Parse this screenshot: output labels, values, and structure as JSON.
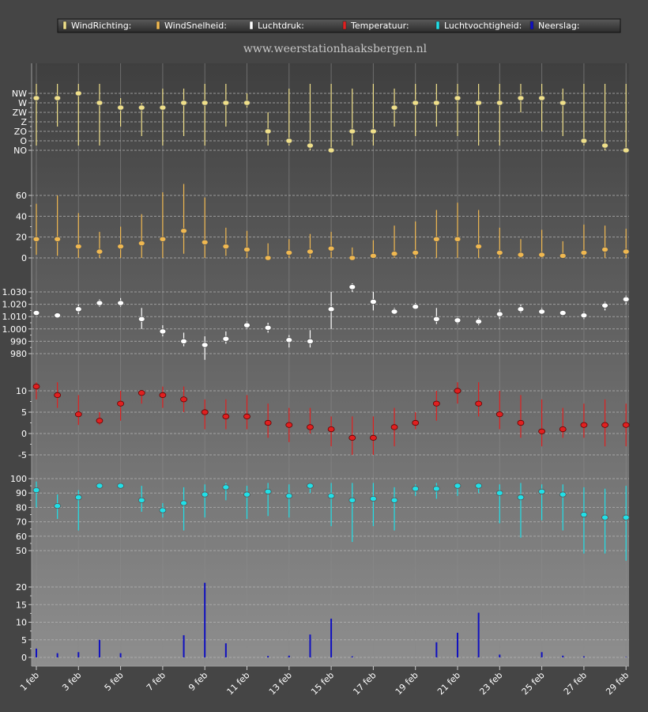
{
  "legend": {
    "items": [
      {
        "label": "WindRichting:",
        "color": "#f0e08a"
      },
      {
        "label": "WindSnelheid:",
        "color": "#f0b850"
      },
      {
        "label": "Luchtdruk:",
        "color": "#ffffff"
      },
      {
        "label": "Temperatuur:",
        "color": "#e02020"
      },
      {
        "label": "Luchtvochtigheid:",
        "color": "#20e0e8"
      },
      {
        "label": "Neerslag:",
        "color": "#1010c0"
      }
    ]
  },
  "watermark": "www.weerstationhaaksbergen.nl",
  "chart_data": {
    "type": "multi-panel",
    "x_tick_labels": [
      "1 feb",
      "3 feb",
      "5 feb",
      "7 feb",
      "9 feb",
      "11 feb",
      "13 feb",
      "15 feb",
      "17 feb",
      "19 feb",
      "21 feb",
      "23 feb",
      "25 feb",
      "27 feb",
      "29 feb"
    ],
    "days": [
      1,
      2,
      3,
      4,
      5,
      6,
      7,
      8,
      9,
      10,
      11,
      12,
      13,
      14,
      15,
      16,
      17,
      18,
      19,
      20,
      21,
      22,
      23,
      24,
      25,
      26,
      27,
      28,
      29
    ],
    "panels": [
      {
        "name": "WindRichting",
        "type": "range-dot",
        "color": "#f0e08a",
        "categories": [
          "NO",
          "O",
          "ZO",
          "Z",
          "ZW",
          "W",
          "NW"
        ],
        "yticks": [
          "NW",
          "W",
          "ZW",
          "Z",
          "ZO",
          "O",
          "NO"
        ],
        "mean": [
          5.5,
          5.5,
          6,
          5,
          4.5,
          4.5,
          4.5,
          5,
          5,
          5,
          5,
          2,
          1,
          0.5,
          0,
          2,
          2,
          4.5,
          5,
          5,
          5.5,
          5,
          5,
          5.5,
          5.5,
          5,
          1,
          0.5,
          0
        ],
        "low": [
          0.5,
          2.5,
          0.5,
          0.5,
          2.5,
          1.5,
          0.5,
          1.5,
          0.5,
          2.5,
          4.5,
          0.5,
          0.5,
          0,
          0,
          0.5,
          0.5,
          2.5,
          1.5,
          2.5,
          1.5,
          0.5,
          0.5,
          4,
          2,
          1.5,
          0.5,
          0,
          0
        ],
        "high": [
          7,
          7,
          7,
          7,
          5.5,
          5,
          6.5,
          6.5,
          7,
          7,
          6,
          4,
          6.5,
          7,
          7,
          6.5,
          7,
          6.5,
          7,
          7,
          7,
          7,
          7,
          7,
          7,
          6.5,
          7,
          7,
          7
        ]
      },
      {
        "name": "WindSnelheid",
        "type": "range-dot",
        "color": "#f0b850",
        "yticks": [
          0,
          20,
          40,
          60
        ],
        "mean": [
          18,
          18,
          11,
          6,
          11,
          14,
          18,
          26,
          15,
          11,
          8,
          0,
          5,
          6,
          9,
          0,
          2,
          4,
          5,
          18,
          18,
          11,
          5,
          3,
          3,
          2,
          5,
          8,
          6
        ],
        "low": [
          3,
          2,
          0,
          0,
          0,
          0,
          0,
          4,
          0,
          2,
          0,
          0,
          0,
          0,
          0,
          0,
          0,
          0,
          0,
          0,
          0,
          0,
          0,
          0,
          0,
          0,
          0,
          0,
          0
        ],
        "high": [
          52,
          60,
          43,
          25,
          30,
          42,
          63,
          71,
          58,
          29,
          26,
          14,
          18,
          23,
          25,
          10,
          17,
          31,
          35,
          46,
          53,
          46,
          29,
          18,
          27,
          16,
          32,
          31,
          28
        ]
      },
      {
        "name": "Luchtdruk",
        "type": "range-dot",
        "color": "#ffffff",
        "yticks": [
          "980",
          "990",
          "1.000",
          "1.010",
          "1.020",
          "1.030"
        ],
        "yvalues": [
          980,
          990,
          1000,
          1010,
          1020,
          1030
        ],
        "mean": [
          1013,
          1011,
          1016,
          1021,
          1021,
          1008,
          998,
          990,
          987,
          992,
          1003,
          1001,
          991,
          990,
          1016,
          1034,
          1022,
          1014,
          1018,
          1008,
          1007,
          1006,
          1012,
          1016,
          1014,
          1013,
          1011,
          1019,
          1024
        ],
        "low": [
          1011,
          1010,
          1012,
          1018,
          1018,
          1000,
          994,
          986,
          975,
          988,
          1000,
          997,
          985,
          985,
          1000,
          1030,
          1015,
          1012,
          1016,
          1004,
          1004,
          1003,
          1008,
          1013,
          1012,
          1011,
          1008,
          1015,
          1020
        ],
        "high": [
          1015,
          1013,
          1020,
          1024,
          1025,
          1017,
          1003,
          997,
          994,
          998,
          1006,
          1005,
          995,
          999,
          1030,
          1037,
          1030,
          1017,
          1021,
          1017,
          1010,
          1009,
          1016,
          1020,
          1017,
          1015,
          1014,
          1022,
          1027
        ]
      },
      {
        "name": "Temperatuur",
        "type": "range-dot",
        "color": "#e02020",
        "yticks": [
          "-5",
          "0",
          "5",
          "10"
        ],
        "yvalues": [
          -5,
          0,
          5,
          10
        ],
        "mean": [
          11,
          9,
          4.5,
          3,
          7,
          9.5,
          9,
          8,
          5,
          4,
          4,
          2.5,
          2,
          1.5,
          1,
          -1,
          -1,
          1.5,
          2.5,
          7,
          10,
          7,
          4.5,
          2.5,
          0.5,
          1,
          2,
          2,
          2
        ],
        "low": [
          8,
          6,
          2,
          2,
          3,
          7,
          6,
          5,
          1,
          1,
          1,
          -1,
          -2,
          0,
          -3,
          -5,
          -5,
          -3,
          1,
          3,
          7,
          4,
          1,
          -1,
          -3,
          -1,
          -1,
          -3,
          -3
        ],
        "high": [
          12,
          12,
          9,
          5,
          10,
          10,
          11,
          11,
          8,
          8,
          9,
          7,
          6,
          6,
          4,
          4,
          4,
          6,
          5,
          10,
          12,
          12,
          10,
          9,
          8,
          6,
          7,
          8,
          7
        ]
      },
      {
        "name": "Luchtvochtigheid",
        "type": "range-dot",
        "color": "#20e0e8",
        "yticks": [
          50,
          60,
          70,
          80,
          90,
          100
        ],
        "mean": [
          92,
          81,
          87,
          95,
          95,
          85,
          78,
          83,
          89,
          94,
          89,
          91,
          88,
          95,
          88,
          85,
          86,
          85,
          93,
          93,
          95,
          95,
          90,
          87,
          91,
          89,
          75,
          73,
          73
        ],
        "low": [
          80,
          72,
          64,
          93,
          94,
          77,
          73,
          64,
          73,
          85,
          72,
          74,
          73,
          90,
          67,
          56,
          67,
          64,
          88,
          86,
          88,
          90,
          69,
          59,
          71,
          64,
          48,
          48,
          43
        ],
        "high": [
          98,
          89,
          92,
          97,
          97,
          95,
          83,
          94,
          96,
          97,
          95,
          97,
          96,
          97,
          97,
          97,
          97,
          94,
          96,
          97,
          97,
          97,
          96,
          97,
          96,
          96,
          94,
          93,
          95
        ]
      },
      {
        "name": "Neerslag",
        "type": "bar",
        "color": "#1010c0",
        "yticks": [
          0,
          5,
          10,
          15,
          20
        ],
        "values": [
          2.5,
          1.2,
          1.5,
          5,
          1.2,
          0,
          0,
          6.3,
          21.2,
          4,
          0,
          0.4,
          0.5,
          6.5,
          11,
          0.3,
          0,
          0,
          0,
          4.3,
          7,
          12.7,
          0.8,
          0,
          1.5,
          0.5,
          0.3,
          0,
          0.1
        ]
      }
    ]
  }
}
